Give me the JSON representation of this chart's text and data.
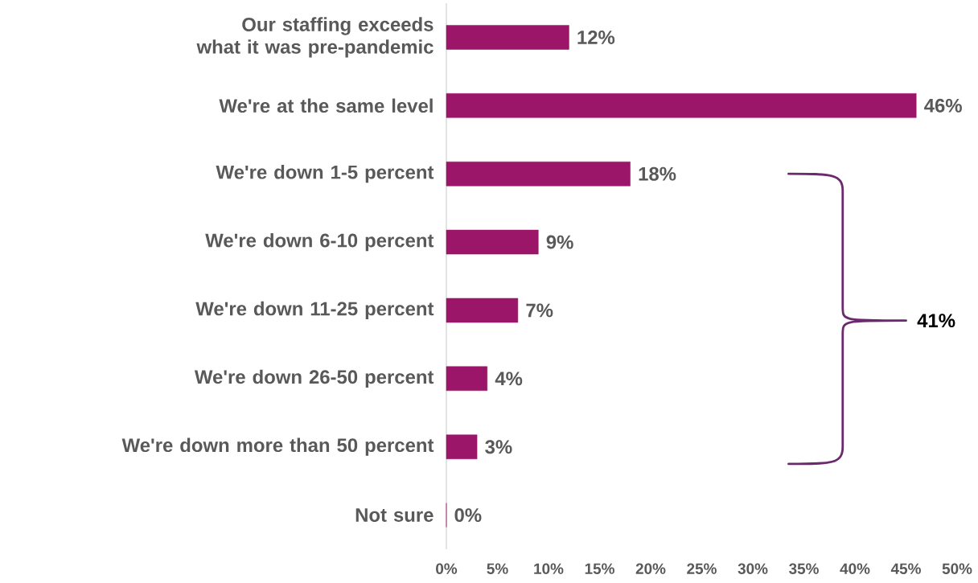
{
  "chart_data": {
    "type": "bar",
    "orientation": "horizontal",
    "color": "#9b1569",
    "categories": [
      "Our staffing exceeds what it was pre-pandemic",
      "We're at the same level",
      "We're down 1-5 percent",
      "We're down 6-10 percent",
      "We're down 11-25 percent",
      "We're down 26-50 percent",
      "We're down more than 50 percent",
      "Not sure"
    ],
    "values": [
      12,
      46,
      18,
      9,
      7,
      4,
      3,
      0
    ],
    "value_labels": [
      "12%",
      "46%",
      "18%",
      "9%",
      "7%",
      "4%",
      "3%",
      "0%"
    ],
    "xlim": [
      0,
      50
    ],
    "xticks": [
      {
        "value": 0,
        "label": "0%"
      },
      {
        "value": 5,
        "label": "5%"
      },
      {
        "value": 10,
        "label": "10%"
      },
      {
        "value": 15,
        "label": "15%"
      },
      {
        "value": 20,
        "label": "20%"
      },
      {
        "value": 25,
        "label": "25%"
      },
      {
        "value": 30,
        "label": "30%"
      },
      {
        "value": 35,
        "label": "35%"
      },
      {
        "value": 40,
        "label": "40%"
      },
      {
        "value": 45,
        "label": "45%"
      },
      {
        "value": 50,
        "label": "50%"
      }
    ],
    "grid": false,
    "annotations": [
      "41%"
    ]
  }
}
